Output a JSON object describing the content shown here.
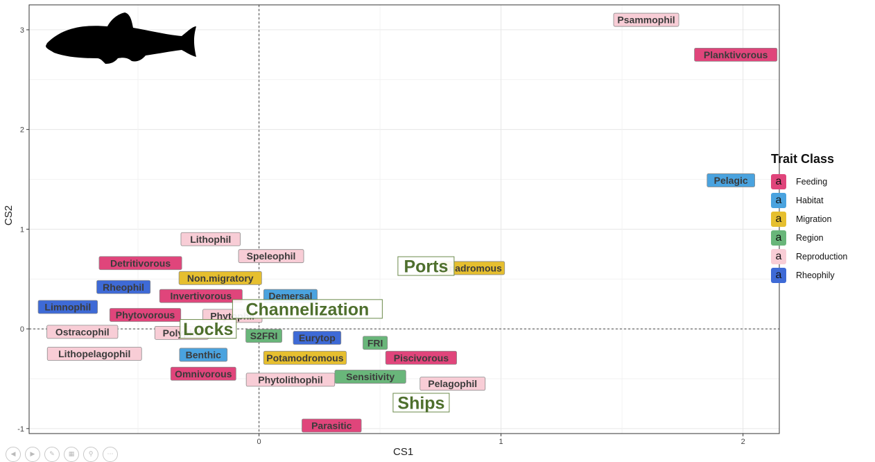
{
  "chart_data": {
    "type": "scatter",
    "xlabel": "CS1",
    "ylabel": "CS2",
    "xlim": [
      -0.95,
      2.15
    ],
    "ylim": [
      -1.05,
      3.25
    ],
    "x_ticks": [
      0,
      1,
      2
    ],
    "y_ticks": [
      -1,
      0,
      1,
      2,
      3
    ],
    "reference_lines": {
      "x": 0,
      "y": 0
    },
    "grid": true,
    "legend": {
      "title": "Trait Class",
      "placement": "right",
      "key_glyph": "a",
      "entries": [
        {
          "name": "Feeding",
          "color": "#e0457b"
        },
        {
          "name": "Habitat",
          "color": "#4aa3df"
        },
        {
          "name": "Migration",
          "color": "#e6bf2f"
        },
        {
          "name": "Region",
          "color": "#69b67a"
        },
        {
          "name": "Reproduction",
          "color": "#f8cdd6"
        },
        {
          "name": "Rheophily",
          "color": "#3e6ad6"
        }
      ]
    },
    "points": [
      {
        "label": "Psammophil",
        "class": "Reproduction",
        "x": 1.6,
        "y": 3.1
      },
      {
        "label": "Planktivorous",
        "class": "Feeding",
        "x": 1.97,
        "y": 2.75
      },
      {
        "label": "Pelagic",
        "class": "Habitat",
        "x": 1.95,
        "y": 1.49
      },
      {
        "label": "Lithophil",
        "class": "Reproduction",
        "x": -0.2,
        "y": 0.9
      },
      {
        "label": "Speleophil",
        "class": "Reproduction",
        "x": 0.05,
        "y": 0.73
      },
      {
        "label": "Detritivorous",
        "class": "Feeding",
        "x": -0.49,
        "y": 0.66
      },
      {
        "label": "Non.migratory",
        "class": "Migration",
        "x": -0.16,
        "y": 0.51
      },
      {
        "label": "Rheophil",
        "class": "Rheophily",
        "x": -0.56,
        "y": 0.42
      },
      {
        "label": "Invertivorous",
        "class": "Feeding",
        "x": -0.24,
        "y": 0.33
      },
      {
        "label": "Demersal",
        "class": "Habitat",
        "x": 0.13,
        "y": 0.33
      },
      {
        "label": "Limnophil",
        "class": "Rheophily",
        "x": -0.79,
        "y": 0.22
      },
      {
        "label": "Phytovorous",
        "class": "Feeding",
        "x": -0.47,
        "y": 0.14
      },
      {
        "label": "Phytophil",
        "class": "Reproduction",
        "x": -0.11,
        "y": 0.13
      },
      {
        "label": "Polyphil",
        "class": "Reproduction",
        "x": -0.32,
        "y": -0.04
      },
      {
        "label": "Ostracophil",
        "class": "Reproduction",
        "x": -0.73,
        "y": -0.03
      },
      {
        "label": "Lithopelagophil",
        "class": "Reproduction",
        "x": -0.68,
        "y": -0.25
      },
      {
        "label": "Benthic",
        "class": "Habitat",
        "x": -0.23,
        "y": -0.26
      },
      {
        "label": "S2FRI",
        "class": "Region",
        "x": 0.02,
        "y": -0.07
      },
      {
        "label": "Eurytop",
        "class": "Rheophily",
        "x": 0.24,
        "y": -0.09
      },
      {
        "label": "FRI",
        "class": "Region",
        "x": 0.48,
        "y": -0.14
      },
      {
        "label": "Potamodromous",
        "class": "Migration",
        "x": 0.19,
        "y": -0.29
      },
      {
        "label": "Piscivorous",
        "class": "Feeding",
        "x": 0.67,
        "y": -0.29
      },
      {
        "label": "Omnivorous",
        "class": "Feeding",
        "x": -0.23,
        "y": -0.45
      },
      {
        "label": "Phytolithophil",
        "class": "Reproduction",
        "x": 0.13,
        "y": -0.51
      },
      {
        "label": "Sensitivity",
        "class": "Region",
        "x": 0.46,
        "y": -0.48
      },
      {
        "label": "Pelagophil",
        "class": "Reproduction",
        "x": 0.8,
        "y": -0.55
      },
      {
        "label": "Parasitic",
        "class": "Feeding",
        "x": 0.3,
        "y": -0.97
      },
      {
        "label": "Anadromous",
        "class": "Migration",
        "x": 0.88,
        "y": 0.61
      }
    ],
    "environment_vectors": [
      {
        "label": "Ports",
        "x": 0.69,
        "y": 0.63
      },
      {
        "label": "Channelization",
        "x": 0.2,
        "y": 0.2
      },
      {
        "label": "Locks",
        "x": -0.21,
        "y": 0.0
      },
      {
        "label": "Ships",
        "x": 0.67,
        "y": -0.74
      }
    ]
  }
}
